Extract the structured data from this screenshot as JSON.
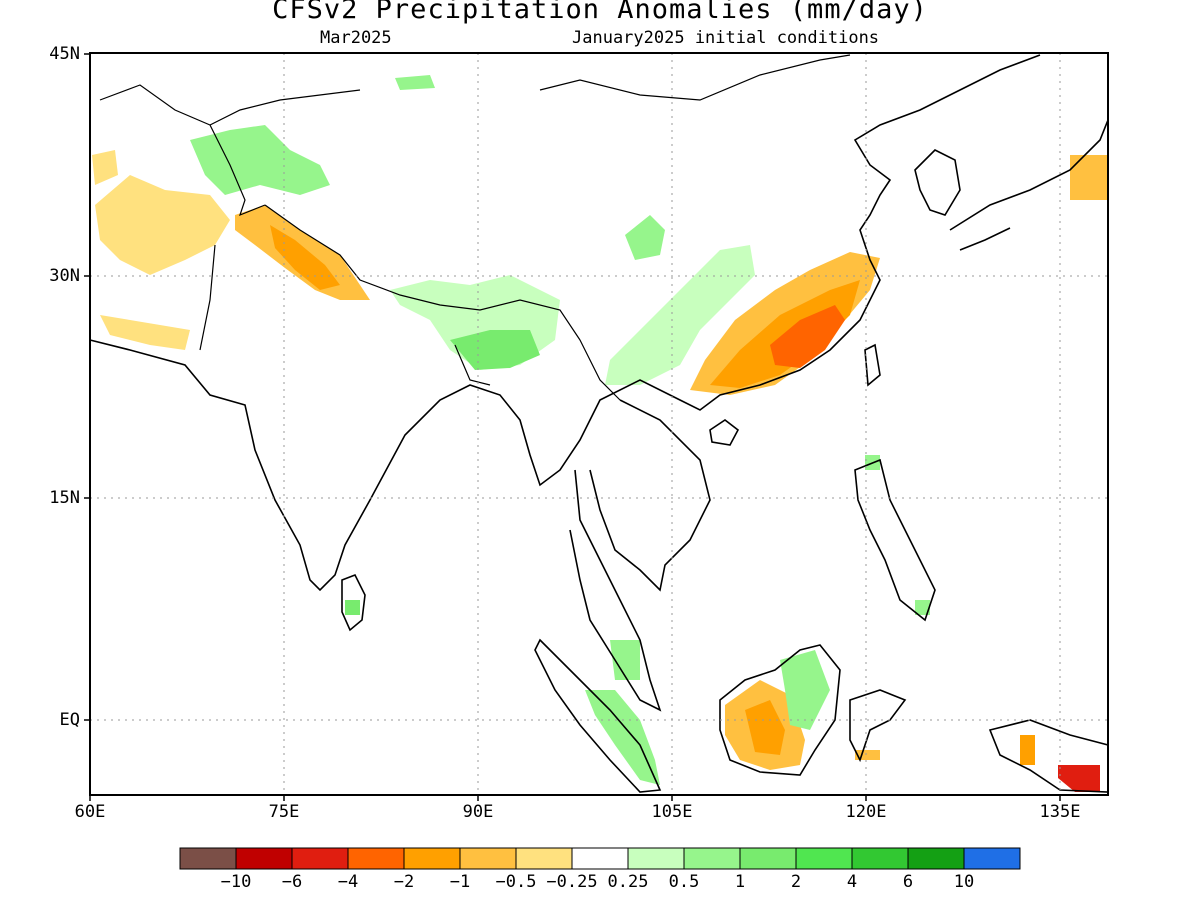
{
  "title": "CFSv2 Precipitation Anomalies (mm/day)",
  "subtitle_left": "Mar2025",
  "subtitle_right": "January2025 initial conditions",
  "axes": {
    "lat_labels": [
      "45N",
      "30N",
      "15N",
      "EQ"
    ],
    "lon_labels": [
      "60E",
      "75E",
      "90E",
      "105E",
      "120E",
      "135E"
    ]
  },
  "colorbar": {
    "colors": [
      "#7b4f47",
      "#c00000",
      "#e01e10",
      "#ff6400",
      "#ffa000",
      "#ffc040",
      "#ffe17f",
      "#ffffff",
      "#c8ffbe",
      "#96f58c",
      "#78eb6e",
      "#50e650",
      "#32c832",
      "#14a014",
      "#1f6fe6"
    ],
    "labels": [
      "−10",
      "−6",
      "−4",
      "−2",
      "−1",
      "−0.5",
      "−0.25",
      "0.25",
      "0.5",
      "1",
      "2",
      "4",
      "6",
      "10"
    ]
  }
}
